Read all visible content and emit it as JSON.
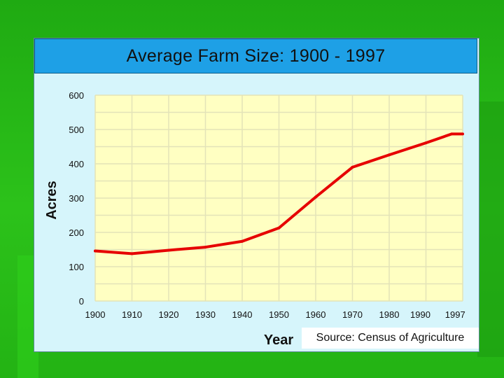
{
  "page": {
    "background": "#22b415",
    "source_note": "Source: Census of Agriculture"
  },
  "chart_data": {
    "type": "line",
    "title": "Average Farm Size: 1900 - 1997",
    "xlabel": "Year",
    "ylabel": "Acres",
    "ylim": [
      0,
      600
    ],
    "yticks": [
      0,
      100,
      200,
      300,
      400,
      500,
      600
    ],
    "xticks": [
      1900,
      1910,
      1920,
      1930,
      1940,
      1950,
      1960,
      1970,
      1980,
      1990,
      1997
    ],
    "xlim": [
      1900,
      2000
    ],
    "grid": true,
    "colors": {
      "line": "#e60000",
      "plot_bg": "#ffffc2",
      "grid": "#e3e3b8",
      "title_bg": "#1ea0e6"
    },
    "series": [
      {
        "x": [
          1900,
          1910,
          1920,
          1930,
          1940,
          1950,
          1960,
          1970,
          1980,
          1990,
          1997
        ],
        "values": [
          146,
          138,
          148,
          157,
          174,
          213,
          303,
          390,
          426,
          461,
          487
        ]
      }
    ]
  }
}
